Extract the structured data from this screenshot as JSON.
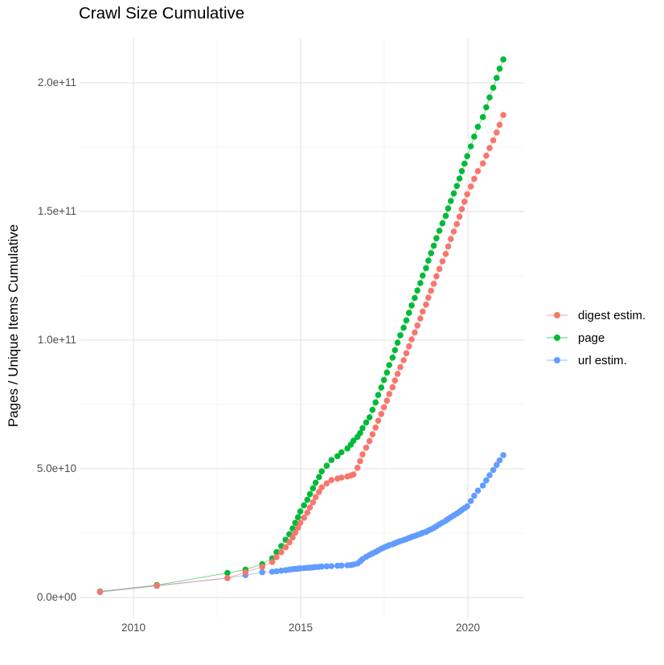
{
  "page": {
    "title": "Crawl Size Cumulative"
  },
  "axes": {
    "y_title": "Pages / Unique Items Cumulative",
    "y_ticks": [
      {
        "label": "2.0e+11",
        "value_billions": 200
      },
      {
        "label": "1.5e+11",
        "value_billions": 150
      },
      {
        "label": "1.0e+11",
        "value_billions": 100
      },
      {
        "label": "5.0e+10",
        "value_billions": 50
      },
      {
        "label": "0.0e+00",
        "value_billions": 0
      }
    ],
    "x_ticks": [
      {
        "label": "2010",
        "value_year": 2010
      },
      {
        "label": "2015",
        "value_year": 2015
      },
      {
        "label": "2020",
        "value_year": 2020
      }
    ]
  },
  "legend": {
    "items": [
      {
        "label": "digest estim."
      },
      {
        "label": "page"
      },
      {
        "label": "url estim."
      }
    ]
  },
  "colors": {
    "digest": "#F8766D",
    "page": "#00BA38",
    "url": "#619CFF",
    "grid_major": "#E5E5E5",
    "grid_minor": "#F1F1F1",
    "tick_text": "#4D4D4D"
  },
  "chart_data": {
    "type": "line",
    "marker": "point",
    "title": "Crawl Size Cumulative",
    "xlabel": "",
    "ylabel": "Pages / Unique Items Cumulative",
    "x_unit": "decimal year (crawl date)",
    "y_unit": "items, stored in billions (1e9)",
    "xlim": [
      2008.4,
      2021.66
    ],
    "ylim_billions": [
      -8,
      217
    ],
    "grid": true,
    "legend_position": "right",
    "x_major_gridlines_years": [
      2010,
      2015,
      2020
    ],
    "x_minor_gridlines_years": [
      2012.5,
      2017.5
    ],
    "y_major_gridlines_billions": [
      0,
      50,
      100,
      150,
      200
    ],
    "y_minor_gridlines_billions": [
      25,
      75,
      125,
      175
    ],
    "x": [
      2009.0,
      2010.7,
      2012.81,
      2013.35,
      2013.85,
      2014.15,
      2014.28,
      2014.42,
      2014.55,
      2014.66,
      2014.76,
      2014.84,
      2014.92,
      2014.99,
      2015.1,
      2015.2,
      2015.28,
      2015.37,
      2015.45,
      2015.55,
      2015.63,
      2015.78,
      2015.92,
      2016.1,
      2016.22,
      2016.4,
      2016.5,
      2016.58,
      2016.7,
      2016.78,
      2016.85,
      2016.96,
      2017.06,
      2017.15,
      2017.24,
      2017.32,
      2017.41,
      2017.49,
      2017.58,
      2017.65,
      2017.75,
      2017.82,
      2017.9,
      2017.98,
      2018.08,
      2018.16,
      2018.24,
      2018.32,
      2018.41,
      2018.49,
      2018.58,
      2018.65,
      2018.75,
      2018.82,
      2018.9,
      2018.98,
      2019.06,
      2019.15,
      2019.24,
      2019.34,
      2019.41,
      2019.49,
      2019.58,
      2019.67,
      2019.75,
      2019.82,
      2019.9,
      2019.98,
      2020.09,
      2020.19,
      2020.3,
      2020.45,
      2020.55,
      2020.65,
      2020.76,
      2020.86,
      2020.95,
      2021.06
    ],
    "series": [
      {
        "name": "digest estim.",
        "color": "#F8766D",
        "y_billions": [
          2.2,
          4.6,
          7.6,
          9.8,
          11.9,
          13.8,
          15.7,
          17.6,
          19.5,
          21.4,
          23.3,
          25.2,
          27.1,
          29.0,
          31.0,
          33.0,
          35.0,
          37.0,
          39.0,
          41.0,
          42.8,
          44.3,
          45.6,
          46.2,
          46.6,
          47.0,
          47.4,
          47.8,
          50.4,
          53.0,
          55.6,
          58.2,
          60.8,
          63.4,
          66.0,
          68.7,
          71.3,
          73.9,
          76.5,
          79.1,
          81.7,
          84.3,
          86.9,
          89.5,
          92.2,
          94.9,
          97.6,
          100.3,
          103.0,
          105.7,
          108.4,
          111.1,
          113.8,
          116.5,
          119.2,
          121.9,
          124.8,
          127.7,
          130.6,
          133.5,
          136.4,
          139.3,
          142.2,
          145.1,
          148.0,
          150.9,
          153.8,
          156.7,
          159.7,
          162.7,
          165.7,
          168.7,
          171.7,
          174.7,
          177.7,
          180.7,
          183.7,
          187.5
        ]
      },
      {
        "name": "page",
        "color": "#00BA38",
        "y_billions": [
          2.3,
          4.8,
          9.5,
          10.8,
          12.9,
          15.2,
          17.6,
          20.0,
          22.4,
          24.6,
          26.8,
          29.0,
          31.2,
          33.4,
          35.8,
          38.0,
          40.2,
          42.4,
          44.6,
          46.8,
          49.0,
          51.2,
          53.4,
          54.9,
          56.4,
          57.9,
          59.4,
          60.9,
          62.4,
          63.9,
          65.8,
          68.0,
          70.0,
          72.9,
          75.8,
          78.7,
          81.6,
          84.5,
          87.4,
          90.3,
          93.2,
          96.1,
          99.0,
          101.9,
          104.8,
          107.7,
          110.6,
          113.5,
          116.4,
          119.3,
          122.2,
          125.1,
          128.0,
          130.9,
          133.8,
          136.7,
          139.6,
          142.5,
          145.4,
          148.3,
          151.2,
          154.1,
          157.0,
          159.9,
          162.8,
          165.7,
          168.6,
          171.5,
          175.3,
          179.1,
          182.9,
          186.7,
          190.5,
          194.3,
          198.1,
          201.9,
          205.5,
          209.1
        ]
      },
      {
        "name": "url estim.",
        "color": "#619CFF",
        "y_billions": [
          2.1,
          4.5,
          7.5,
          8.7,
          9.8,
          10.0,
          10.2,
          10.4,
          10.6,
          10.8,
          11.0,
          11.1,
          11.2,
          11.3,
          11.4,
          11.5,
          11.6,
          11.7,
          11.8,
          11.9,
          12.0,
          12.1,
          12.2,
          12.3,
          12.4,
          12.5,
          12.6,
          12.8,
          13.2,
          14.0,
          14.9,
          15.8,
          16.5,
          17.1,
          17.7,
          18.3,
          18.9,
          19.4,
          19.9,
          20.3,
          20.7,
          21.1,
          21.5,
          21.9,
          22.3,
          22.7,
          23.1,
          23.5,
          23.9,
          24.3,
          24.7,
          25.1,
          25.5,
          26.0,
          26.5,
          27.0,
          27.7,
          28.4,
          29.1,
          29.8,
          30.5,
          31.2,
          31.9,
          32.6,
          33.3,
          34.0,
          34.7,
          35.4,
          37.5,
          39.5,
          41.5,
          43.5,
          45.5,
          47.5,
          49.5,
          51.5,
          53.3,
          55.3
        ]
      }
    ]
  }
}
